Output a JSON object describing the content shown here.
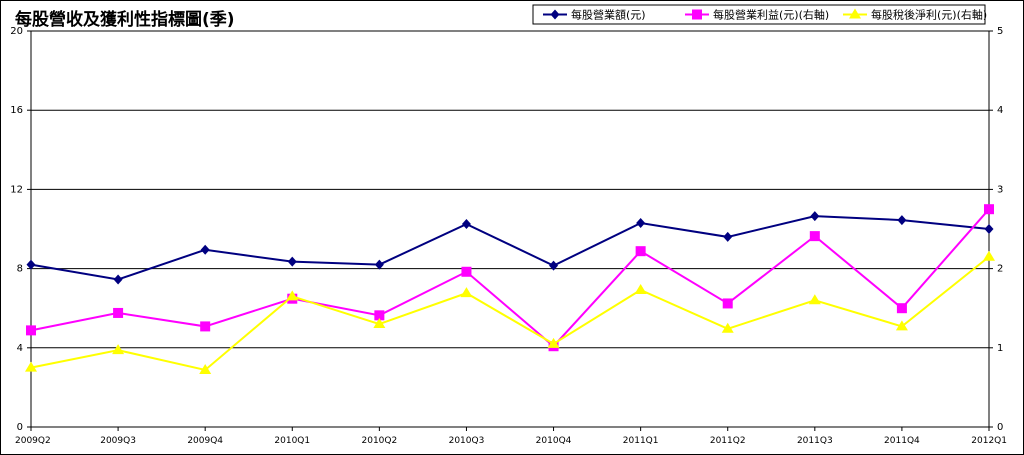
{
  "chart_data": {
    "type": "line",
    "title": "每股營收及獲利性指標圖(季)",
    "categories": [
      "2009Q2",
      "2009Q3",
      "2009Q4",
      "2010Q1",
      "2010Q2",
      "2010Q3",
      "2010Q4",
      "2011Q1",
      "2011Q2",
      "2011Q3",
      "2011Q4",
      "2012Q1"
    ],
    "y_left": {
      "min": 0,
      "max": 20,
      "ticks": [
        "0",
        "4",
        "8",
        "12",
        "16",
        "20"
      ]
    },
    "y_right": {
      "min": 0,
      "max": 5,
      "ticks": [
        "0",
        "1",
        "2",
        "3",
        "4",
        "5"
      ]
    },
    "grid": true,
    "legend_position": "top-right",
    "series": [
      {
        "name": "每股營業額(元)",
        "axis": "left",
        "color": "#000080",
        "marker": "diamond",
        "values": [
          8.2,
          7.45,
          8.95,
          8.35,
          8.2,
          10.25,
          8.15,
          10.3,
          9.6,
          10.65,
          10.45,
          10.0
        ]
      },
      {
        "name": "每股營業利益(元)(右軸)",
        "axis": "right",
        "color": "#ff00ff",
        "marker": "square",
        "values": [
          1.22,
          1.44,
          1.27,
          1.62,
          1.41,
          1.96,
          1.02,
          2.22,
          1.56,
          2.41,
          1.5,
          2.75
        ]
      },
      {
        "name": "每股稅後淨利(元)(右軸)",
        "axis": "right",
        "color": "#ffff00",
        "marker": "triangle",
        "values": [
          0.75,
          0.97,
          0.72,
          1.65,
          1.3,
          1.69,
          1.05,
          1.73,
          1.24,
          1.6,
          1.27,
          2.15
        ]
      }
    ]
  }
}
